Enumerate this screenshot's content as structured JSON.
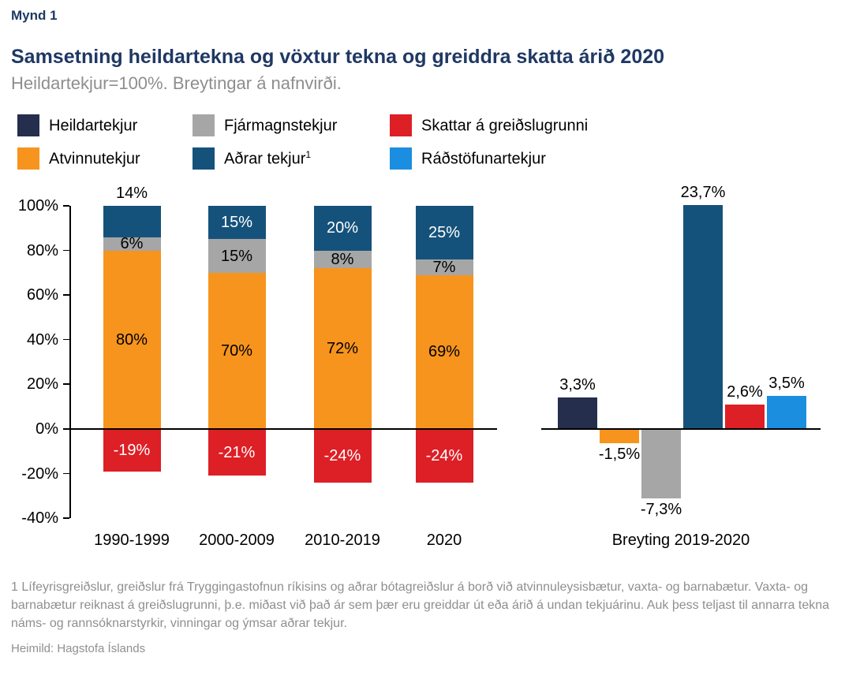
{
  "figure_label": "Mynd 1",
  "title": "Samsetning heildartekna og vöxtur tekna og greiddra skatta árið 2020",
  "subtitle": "Heildartekjur=100%. Breytingar á nafnvirði.",
  "colors": {
    "title": "#1f3864",
    "heildartekjur": "#252e4d",
    "atvinnutekjur": "#f7941d",
    "fjarmagnstekjur": "#a6a6a6",
    "adrar_tekjur": "#15527b",
    "skattar": "#dd1f26",
    "radstofunartekjur": "#1b8ee0",
    "axis": "#000000",
    "footnote_text": "#8f8f8f"
  },
  "legend": {
    "items": [
      {
        "label": "Heildartekjur",
        "color": "#252e4d"
      },
      {
        "label": "Fjármagnstekjur",
        "color": "#a6a6a6"
      },
      {
        "label": "Skattar á greiðslugrunni",
        "color": "#dd1f26"
      },
      {
        "label": "Atvinnutekjur",
        "color": "#f7941d"
      },
      {
        "label": "Aðrar tekjur",
        "sup": "1",
        "color": "#15527b"
      },
      {
        "label": "Ráðstöfunartekjur",
        "color": "#1b8ee0"
      }
    ]
  },
  "chart_data": [
    {
      "type": "bar",
      "variant": "stacked",
      "categories": [
        "1990-1999",
        "2000-2009",
        "2010-2019",
        "2020"
      ],
      "series": [
        {
          "name": "Atvinnutekjur",
          "color": "#f7941d",
          "values": [
            80,
            70,
            72,
            69
          ],
          "labels": [
            "80%",
            "70%",
            "72%",
            "69%"
          ],
          "label_color": "#000000"
        },
        {
          "name": "Fjármagnstekjur",
          "color": "#a6a6a6",
          "values": [
            6,
            15,
            8,
            7
          ],
          "labels": [
            "6%",
            "15%",
            "8%",
            "7%"
          ],
          "label_color": "#000000"
        },
        {
          "name": "Aðrar tekjur",
          "color": "#15527b",
          "values": [
            14,
            15,
            20,
            25
          ],
          "labels": [
            "14%",
            "15%",
            "20%",
            "25%"
          ],
          "label_color": "#ffffff",
          "first_label_outside": true
        },
        {
          "name": "Skattar á greiðslugrunni",
          "color": "#dd1f26",
          "values": [
            -19,
            -21,
            -24,
            -24
          ],
          "labels": [
            "-19%",
            "-21%",
            "-24%",
            "-24%"
          ],
          "label_color": "#ffffff"
        }
      ],
      "ylim": [
        -40,
        100
      ],
      "yticks": [
        "100%",
        "80%",
        "60%",
        "40%",
        "20%",
        "0%",
        "-20%",
        "-40%"
      ],
      "grid": false,
      "legend_position": "top"
    },
    {
      "type": "bar",
      "title": "Breyting 2019-2020",
      "categories": [
        "Heildartekjur",
        "Atvinnutekjur",
        "Fjármagnstekjur",
        "Aðrar tekjur",
        "Skattar á greiðslugrunni",
        "Ráðstöfunartekjur"
      ],
      "values": [
        3.3,
        -1.5,
        -7.3,
        23.7,
        2.6,
        3.5
      ],
      "labels": [
        "3,3%",
        "-1,5%",
        "-7,3%",
        "23,7%",
        "2,6%",
        "3,5%"
      ],
      "colors": [
        "#252e4d",
        "#f7941d",
        "#a6a6a6",
        "#15527b",
        "#dd1f26",
        "#1b8ee0"
      ],
      "grid": false
    }
  ],
  "footnote": "1 Lífeyrisgreiðslur, greiðslur frá Tryggingastofnun ríkisins og aðrar bótagreiðslur á borð við atvinnuleysisbætur, vaxta- og barnabætur. Vaxta- og barnabætur reiknast á greiðslugrunni, þ.e. miðast við það ár sem þær eru greiddar út eða árið á undan tekjuárinu. Auk þess teljast til annarra tekna náms- og rannsóknarstyrkir, vinningar og ýmsar aðrar tekjur.",
  "source": "Heimild: Hagstofa Íslands"
}
